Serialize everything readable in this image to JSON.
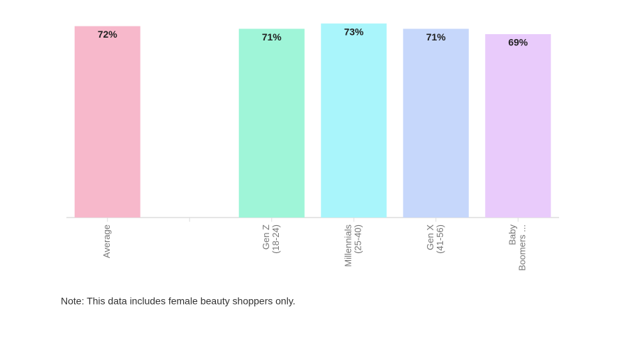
{
  "chart_data": {
    "type": "bar",
    "categories": [
      [
        "Average"
      ],
      null,
      [
        "Gen Z",
        "(18-24)"
      ],
      [
        "Millennials",
        "(25-40)"
      ],
      [
        "Gen X",
        "(41-56)"
      ],
      [
        "Baby",
        "Boomers ..."
      ]
    ],
    "values": [
      72,
      null,
      71,
      73,
      71,
      69
    ],
    "value_labels": [
      "72%",
      null,
      "71%",
      "73%",
      "71%",
      "69%"
    ],
    "colors": [
      "#f7b8cb",
      null,
      "#9ff5d8",
      "#a9f5fb",
      "#c6d7fb",
      "#e9cbfb"
    ],
    "ylim": [
      0,
      80
    ],
    "note": "Note: This data includes female beauty shoppers only."
  }
}
